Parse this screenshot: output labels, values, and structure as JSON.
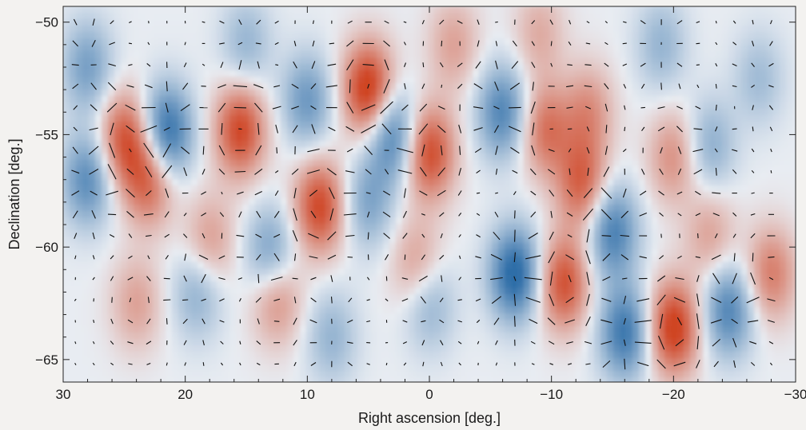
{
  "chart_data": {
    "type": "heatmap",
    "title": "",
    "xlabel": "Right ascension [deg.]",
    "ylabel": "Declination [deg.]",
    "xlim": [
      30,
      -30
    ],
    "ylim": [
      -66,
      -49.3
    ],
    "xticks": [
      30,
      20,
      10,
      0,
      -10,
      -20,
      -30
    ],
    "yticks": [
      -50,
      -55,
      -60,
      -65
    ],
    "xtick_labels": [
      "30",
      "20",
      "10",
      "0",
      "−10",
      "−20",
      "−30"
    ],
    "ytick_labels": [
      "−50",
      "−55",
      "−60",
      "−65"
    ],
    "colormap": {
      "negative": "#2f6ea8",
      "zero": "#e8ecf2",
      "positive": "#cf4424"
    },
    "hotspots": [
      {
        "ra": 5.0,
        "dec": -53.0,
        "amp": 1.0
      },
      {
        "ra": 15.5,
        "dec": -54.8,
        "amp": 0.85
      },
      {
        "ra": 25.0,
        "dec": -55.2,
        "amp": 0.75
      },
      {
        "ra": 23.0,
        "dec": -57.0,
        "amp": 0.7
      },
      {
        "ra": 9.0,
        "dec": -58.2,
        "amp": 0.85
      },
      {
        "ra": 0.0,
        "dec": -55.8,
        "amp": 0.85
      },
      {
        "ra": -9.5,
        "dec": -54.8,
        "amp": 0.6
      },
      {
        "ra": -12.5,
        "dec": -57.2,
        "amp": 0.7
      },
      {
        "ra": -11.0,
        "dec": -61.6,
        "amp": 0.8
      },
      {
        "ra": -20.0,
        "dec": -63.6,
        "amp": 0.95
      },
      {
        "ra": -28.0,
        "dec": -61.2,
        "amp": 0.55
      },
      {
        "ra": -20.0,
        "dec": -56.0,
        "amp": 0.45
      },
      {
        "ra": 12.5,
        "dec": -62.2,
        "amp": 0.5
      },
      {
        "ra": 18.0,
        "dec": -59.8,
        "amp": 0.4
      },
      {
        "ra": 1.0,
        "dec": -60.8,
        "amp": 0.4
      },
      {
        "ra": 24.0,
        "dec": -62.5,
        "amp": 0.35
      },
      {
        "ra": -2.0,
        "dec": -51.0,
        "amp": 0.35
      },
      {
        "ra": -13.0,
        "dec": -54.0,
        "amp": 0.45
      },
      {
        "ra": -23.0,
        "dec": -59.5,
        "amp": 0.35
      },
      {
        "ra": -9.0,
        "dec": -50.5,
        "amp": 0.3
      },
      {
        "ra": 21.5,
        "dec": -54.9,
        "amp": -0.9
      },
      {
        "ra": 28.0,
        "dec": -57.0,
        "amp": -0.65
      },
      {
        "ra": 3.0,
        "dec": -55.0,
        "amp": -0.75
      },
      {
        "ra": 10.0,
        "dec": -53.5,
        "amp": -0.55
      },
      {
        "ra": -6.0,
        "dec": -54.0,
        "amp": -0.7
      },
      {
        "ra": -7.0,
        "dec": -61.2,
        "amp": -0.95
      },
      {
        "ra": -15.0,
        "dec": -59.3,
        "amp": -0.75
      },
      {
        "ra": -16.0,
        "dec": -63.8,
        "amp": -0.8
      },
      {
        "ra": -24.5,
        "dec": -62.8,
        "amp": -0.7
      },
      {
        "ra": -23.0,
        "dec": -55.5,
        "amp": -0.4
      },
      {
        "ra": 13.0,
        "dec": -60.3,
        "amp": -0.55
      },
      {
        "ra": 5.0,
        "dec": -58.0,
        "amp": -0.45
      },
      {
        "ra": 0.0,
        "dec": -62.5,
        "amp": -0.4
      },
      {
        "ra": 19.0,
        "dec": -62.0,
        "amp": -0.4
      },
      {
        "ra": 28.0,
        "dec": -52.0,
        "amp": -0.5
      },
      {
        "ra": 15.0,
        "dec": -51.0,
        "amp": -0.35
      },
      {
        "ra": -19.0,
        "dec": -51.0,
        "amp": -0.35
      },
      {
        "ra": -27.0,
        "dec": -52.5,
        "amp": -0.3
      },
      {
        "ra": 8.0,
        "dec": -64.0,
        "amp": -0.35
      }
    ],
    "polarization": {
      "ra_step_deg": 1.5,
      "dec_step_deg": 0.95,
      "ra_range": [
        29,
        -29
      ],
      "dec_range": [
        -50,
        -65.5
      ]
    }
  }
}
